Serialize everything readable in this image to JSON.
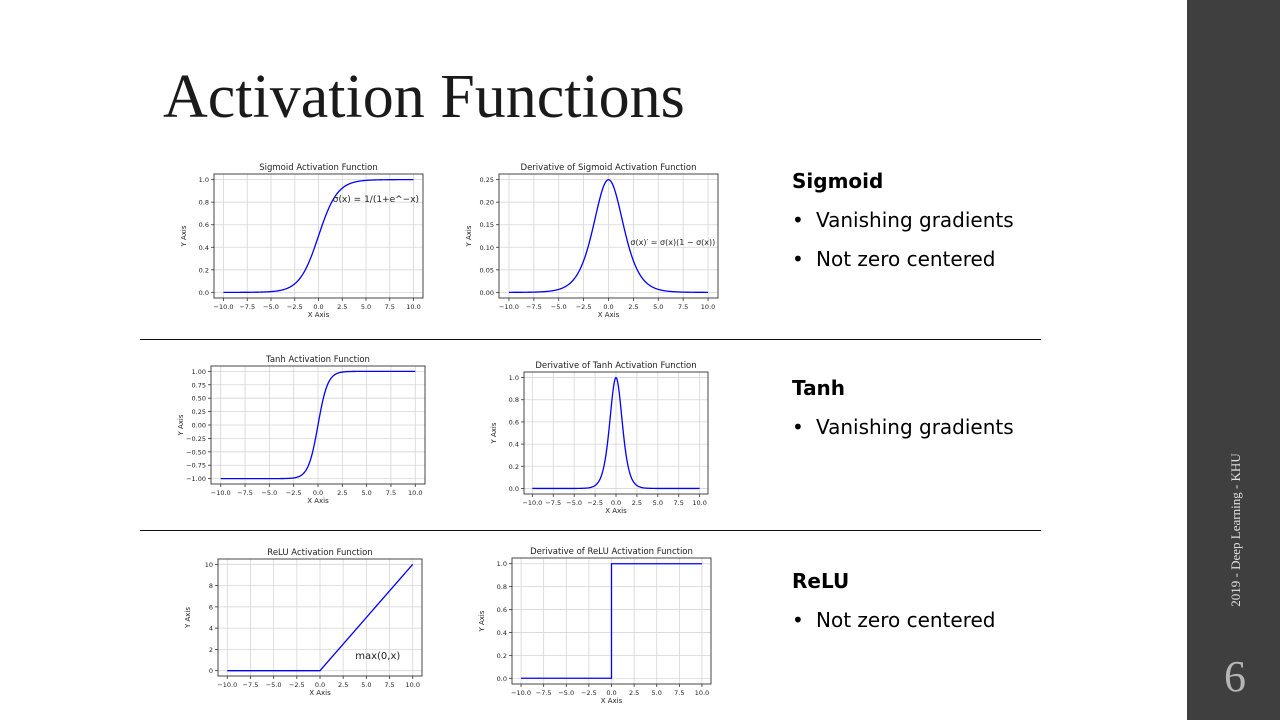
{
  "slide": {
    "title": "Activation Functions",
    "footer": "2019 - Deep Learning - KHU",
    "page_number": "6"
  },
  "sections": [
    {
      "heading": "Sigmoid",
      "bullets": [
        "Vanishing gradients",
        "Not zero centered"
      ]
    },
    {
      "heading": "Tanh",
      "bullets": [
        "Vanishing gradients"
      ]
    },
    {
      "heading": "ReLU",
      "bullets": [
        "Not zero centered"
      ]
    }
  ],
  "bullet_symbol": "•",
  "colors": {
    "line": "#0000ff",
    "grid": "#d6d6d6",
    "sidebar": "#3f3f3f"
  },
  "chart_data": [
    {
      "type": "line",
      "fn": "sigmoid",
      "title": "Sigmoid Activation Function",
      "xlabel": "X Axis",
      "ylabel": "Y Axis",
      "xlim": [
        -10,
        10
      ],
      "ylim": [
        0,
        1
      ],
      "grid": true,
      "xticks": [
        "−10.0",
        "−7.5",
        "−5.0",
        "−2.5",
        "0.0",
        "2.5",
        "5.0",
        "7.5",
        "10.0"
      ],
      "yticks": [
        "0.0",
        "0.2",
        "0.4",
        "0.6",
        "0.8",
        "1.0"
      ],
      "annotation": "σ(x) = 1/(1+e^−x)"
    },
    {
      "type": "line",
      "fn": "dsigmoid",
      "title": "Derivative of Sigmoid Activation Function",
      "xlabel": "X Axis",
      "ylabel": "Y Axis",
      "xlim": [
        -10,
        10
      ],
      "ylim": [
        0,
        0.25
      ],
      "grid": true,
      "xticks": [
        "−10.0",
        "−7.5",
        "−5.0",
        "−2.5",
        "0.0",
        "2.5",
        "5.0",
        "7.5",
        "10.0"
      ],
      "yticks": [
        "0.00",
        "0.05",
        "0.10",
        "0.15",
        "0.20",
        "0.25"
      ],
      "annotation": "σ(x)′ = σ(x)(1 − σ(x))"
    },
    {
      "type": "line",
      "fn": "tanh",
      "title": "Tanh Activation Function",
      "xlabel": "X Axis",
      "ylabel": "Y Axis",
      "xlim": [
        -10,
        10
      ],
      "ylim": [
        -1,
        1
      ],
      "grid": true,
      "xticks": [
        "−10.0",
        "−7.5",
        "−5.0",
        "−2.5",
        "0.0",
        "2.5",
        "5.0",
        "7.5",
        "10.0"
      ],
      "yticks": [
        "−1.00",
        "−0.75",
        "−0.50",
        "−0.25",
        "0.00",
        "0.25",
        "0.50",
        "0.75",
        "1.00"
      ],
      "annotation": ""
    },
    {
      "type": "line",
      "fn": "dtanh",
      "title": "Derivative of Tanh Activation Function",
      "xlabel": "X Axis",
      "ylabel": "Y Axis",
      "xlim": [
        -10,
        10
      ],
      "ylim": [
        0,
        1
      ],
      "grid": true,
      "xticks": [
        "−10.0",
        "−7.5",
        "−5.0",
        "−2.5",
        "0.0",
        "2.5",
        "5.0",
        "7.5",
        "10.0"
      ],
      "yticks": [
        "0.0",
        "0.2",
        "0.4",
        "0.6",
        "0.8",
        "1.0"
      ],
      "annotation": ""
    },
    {
      "type": "line",
      "fn": "relu",
      "title": "ReLU Activation Function",
      "xlabel": "X Axis",
      "ylabel": "Y Axis",
      "xlim": [
        -10,
        10
      ],
      "ylim": [
        0,
        10
      ],
      "grid": true,
      "xticks": [
        "−10.0",
        "−7.5",
        "−5.0",
        "−2.5",
        "0.0",
        "2.5",
        "5.0",
        "7.5",
        "10.0"
      ],
      "yticks": [
        "0",
        "2",
        "4",
        "6",
        "8",
        "10"
      ],
      "annotation": "max(0,x)"
    },
    {
      "type": "line",
      "fn": "drelu",
      "title": "Derivative of ReLU Activation Function",
      "xlabel": "X Axis",
      "ylabel": "Y Axis",
      "xlim": [
        -10,
        10
      ],
      "ylim": [
        0,
        1
      ],
      "grid": true,
      "xticks": [
        "−10.0",
        "−7.5",
        "−5.0",
        "−2.5",
        "0.0",
        "2.5",
        "5.0",
        "7.5",
        "10.0"
      ],
      "yticks": [
        "0.0",
        "0.2",
        "0.4",
        "0.6",
        "0.8",
        "1.0"
      ],
      "annotation": ""
    }
  ]
}
